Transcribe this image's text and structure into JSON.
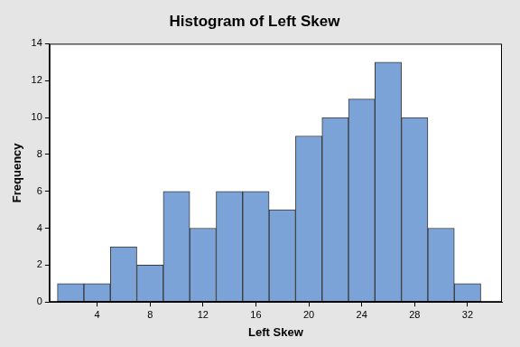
{
  "chart_data": {
    "type": "histogram",
    "title": "Histogram of Left Skew",
    "x_label": "Left Skew",
    "y_label": "Frequency",
    "bins": [
      1,
      3,
      5,
      7,
      9,
      11,
      13,
      15,
      17,
      19,
      21,
      23,
      25,
      27,
      29,
      31,
      33
    ],
    "values": [
      1,
      1,
      3,
      2,
      6,
      4,
      6,
      6,
      5,
      9,
      10,
      11,
      13,
      10,
      4,
      1
    ],
    "color": "#7ba3d8",
    "xlim": [
      0.4,
      34.6
    ],
    "xticks": [
      4,
      8,
      12,
      16,
      20,
      24,
      28,
      32
    ],
    "ylim": [
      0,
      14
    ],
    "yticks": [
      0,
      2,
      4,
      6,
      8,
      10,
      12,
      14
    ],
    "grid": false
  }
}
